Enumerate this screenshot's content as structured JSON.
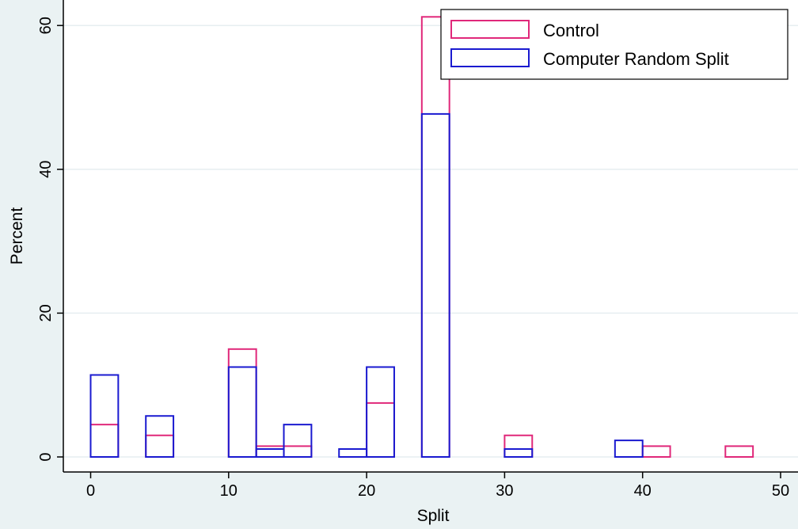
{
  "chart_data": {
    "type": "bar",
    "xlabel": "Split",
    "ylabel": "Percent",
    "xlim": [
      -2,
      51
    ],
    "ylim": [
      0,
      63
    ],
    "x_ticks": [
      0,
      10,
      20,
      30,
      40,
      50
    ],
    "y_ticks": [
      0,
      20,
      40,
      60
    ],
    "grid": true,
    "legend_position": "top-right",
    "series": [
      {
        "name": "Control",
        "color": "#e0287a",
        "bins": [
          {
            "x0": 0,
            "x1": 2,
            "value": 4.5
          },
          {
            "x0": 4,
            "x1": 6,
            "value": 3.0
          },
          {
            "x0": 10,
            "x1": 12,
            "value": 15.0
          },
          {
            "x0": 12,
            "x1": 14,
            "value": 1.5
          },
          {
            "x0": 14,
            "x1": 16,
            "value": 1.5
          },
          {
            "x0": 20,
            "x1": 22,
            "value": 7.5
          },
          {
            "x0": 24,
            "x1": 26,
            "value": 61.2
          },
          {
            "x0": 30,
            "x1": 32,
            "value": 3.0
          },
          {
            "x0": 40,
            "x1": 42,
            "value": 1.5
          },
          {
            "x0": 46,
            "x1": 48,
            "value": 1.5
          }
        ]
      },
      {
        "name": "Computer Random Split",
        "color": "#1a1ad0",
        "bins": [
          {
            "x0": 0,
            "x1": 2,
            "value": 11.4
          },
          {
            "x0": 4,
            "x1": 6,
            "value": 5.7
          },
          {
            "x0": 10,
            "x1": 12,
            "value": 12.5
          },
          {
            "x0": 12,
            "x1": 14,
            "value": 1.1
          },
          {
            "x0": 14,
            "x1": 16,
            "value": 4.5
          },
          {
            "x0": 18,
            "x1": 20,
            "value": 1.1
          },
          {
            "x0": 20,
            "x1": 22,
            "value": 12.5
          },
          {
            "x0": 24,
            "x1": 26,
            "value": 47.7
          },
          {
            "x0": 30,
            "x1": 32,
            "value": 1.1
          },
          {
            "x0": 38,
            "x1": 40,
            "value": 2.3
          }
        ]
      }
    ]
  }
}
